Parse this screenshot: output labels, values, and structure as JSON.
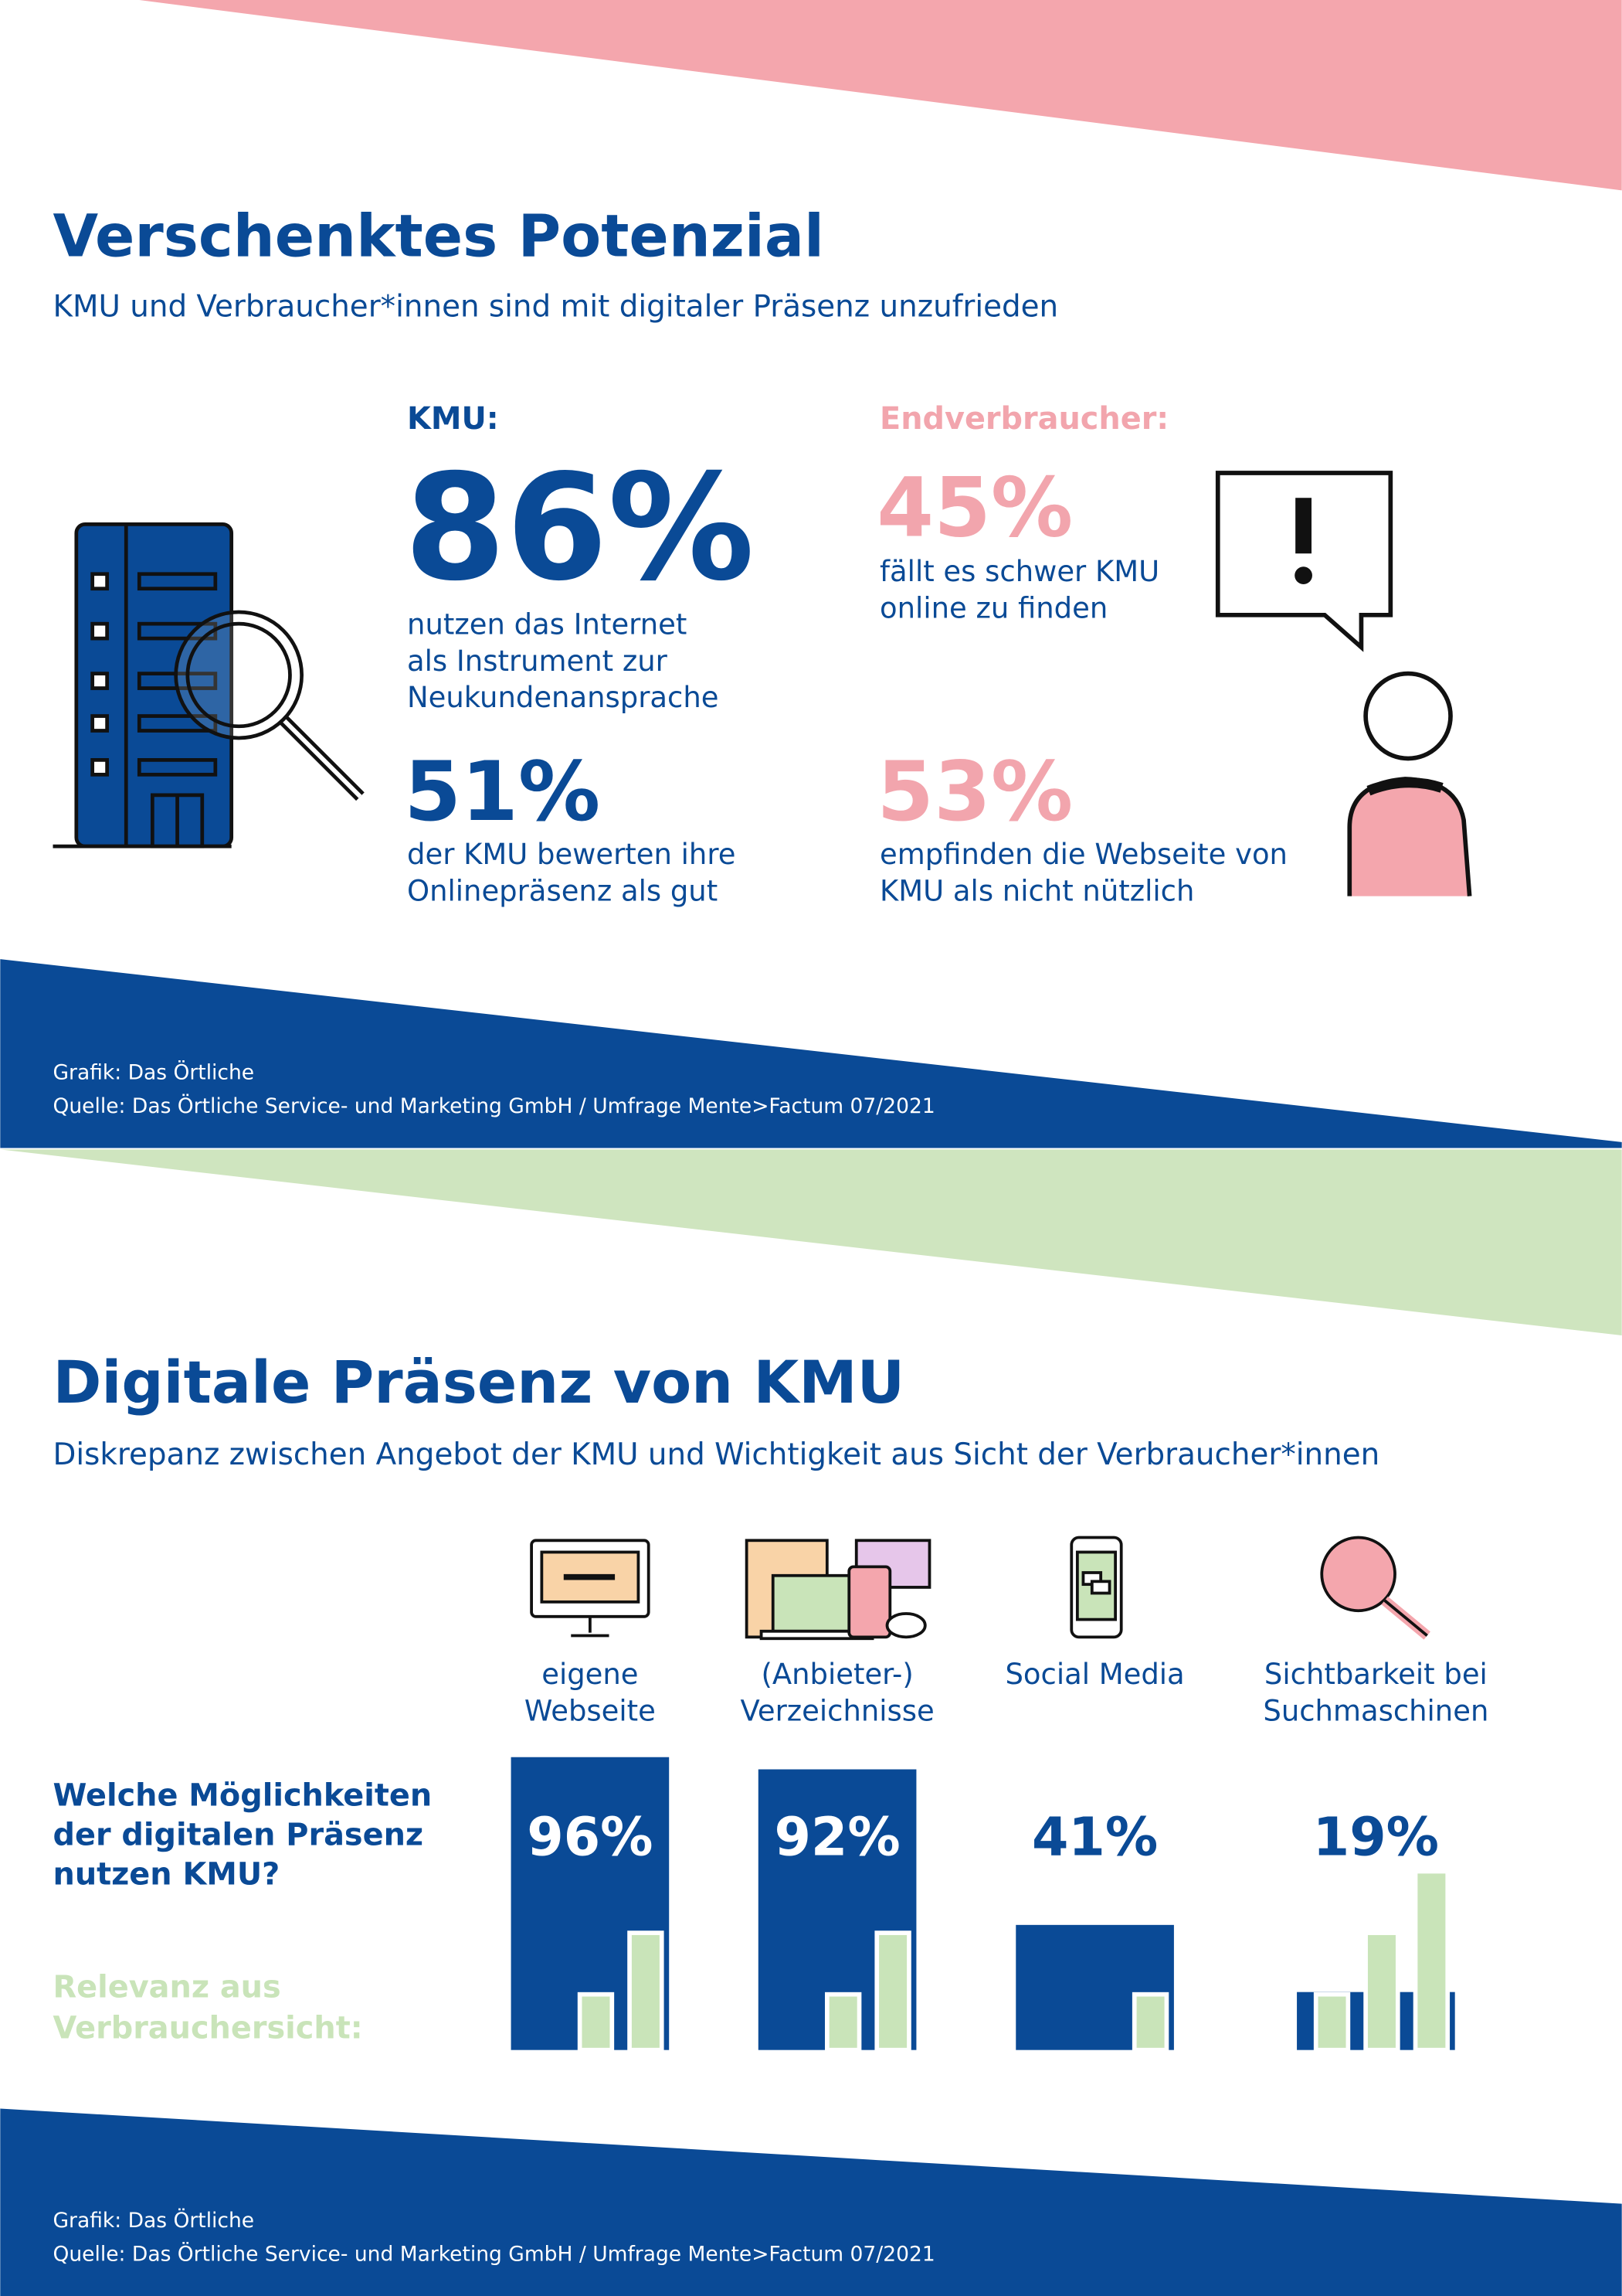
{
  "infographic": {
    "title": "Verschenktes Potenzial",
    "subtitle": "KMU und Verbraucher*innen sind mit digitaler Präsenz unzufrieden",
    "kmu": {
      "heading": "KMU:",
      "stats": [
        {
          "figure": "86%",
          "lines": [
            "nutzen das Internet",
            "als Instrument zur",
            "Neukundenansprache"
          ]
        },
        {
          "figure": "51%",
          "lines": [
            "der KMU bewerten ihre",
            "Onlinepräsenz als gut"
          ]
        }
      ]
    },
    "consumers": {
      "heading": "Endverbraucher:",
      "stats": [
        {
          "figure": "45%",
          "lines": [
            "fällt es schwer KMU",
            "online zu finden"
          ]
        },
        {
          "figure": "53%",
          "lines": [
            "empfinden die Webseite von",
            "KMU als nicht nützlich"
          ]
        }
      ]
    },
    "footer": [
      "Grafik:  Das Örtliche",
      "Quelle: Das Örtliche Service- und Marketing GmbH / Umfrage Mente>Factum 07/2021"
    ]
  },
  "chart_data": {
    "type": "bar",
    "title": "Digitale Präsenz von KMU",
    "subtitle": "Diskrepanz zwischen Angebot der KMU und Wichtigkeit aus Sicht der Verbraucher*innen",
    "question": [
      "Welche Möglichkeiten",
      "der digitalen Präsenz",
      "nutzen KMU?"
    ],
    "relevance_label": [
      "Relevanz aus",
      "Verbrauchersicht:"
    ],
    "categories": [
      [
        "eigene",
        "Webseite"
      ],
      [
        "(Anbieter-)",
        "Verzeichnisse"
      ],
      [
        "Social Media"
      ],
      [
        "Sichtbarkeit bei",
        "Suchmaschinen"
      ]
    ],
    "values": [
      96,
      92,
      41,
      19
    ],
    "value_labels": [
      "96%",
      "92%",
      "41%",
      "19%"
    ],
    "color": "#0a4a96",
    "relevance_levels": [
      2,
      2,
      1,
      3
    ],
    "relevance_color": "#c9e4b9",
    "footer": [
      "Grafik:  Das Örtliche",
      "Quelle: Das Örtliche Service- und Marketing GmbH / Umfrage Mente>Factum 07/2021"
    ]
  }
}
